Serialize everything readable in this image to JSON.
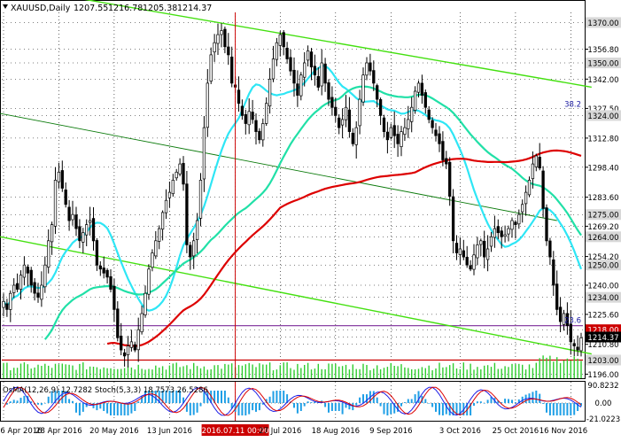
{
  "chart_data": [
    {
      "type": "candlestick",
      "symbol": "XAUUSD,Daily",
      "ohlc_header": [
        "1207.55",
        "1216.78",
        "1205.38",
        "1214.37"
      ],
      "ylim": [
        1194,
        1375
      ],
      "y_ticks": [
        "1370.00",
        "1356.80",
        "1350.00",
        "1342.00",
        "1327.50",
        "1324.00",
        "1312.80",
        "1298.40",
        "1283.60",
        "1275.00",
        "1269.20",
        "1264.00",
        "1254.20",
        "1250.00",
        "1240.00",
        "1234.00",
        "1225.60",
        "1218.00",
        "1214.37",
        "1210.80",
        "1203.00",
        "1196.00"
      ],
      "highlighted_levels": [
        {
          "label": "1370.00",
          "value": 1370.0
        },
        {
          "label": "1350.00",
          "value": 1350.0
        },
        {
          "label": "1324.00",
          "value": 1324.0
        },
        {
          "label": "1275.00",
          "value": 1275.0
        },
        {
          "label": "1264.00",
          "value": 1264.0
        },
        {
          "label": "1250.00",
          "value": 1250.0
        },
        {
          "label": "1234.00",
          "value": 1234.0
        },
        {
          "label": "1218.00",
          "value": 1218.0,
          "color": "#cc0000"
        },
        {
          "label": "1214.37",
          "value": 1214.37,
          "color": "#000000"
        },
        {
          "label": "1203.00",
          "value": 1203.0
        }
      ],
      "fib_labels": [
        {
          "label": "38.2",
          "value": 1327.5
        },
        {
          "label": "23.6",
          "value": 1220.5
        }
      ],
      "horizontal_lines": [
        {
          "value": 1220,
          "color": "#7b2b9a"
        },
        {
          "value": 1203,
          "color": "#cc0000"
        }
      ],
      "x_labels": [
        "6 Apr 2016",
        "28 Apr 2016",
        "20 May 2016",
        "13 Jun 2016",
        "2016.07.11 00:00",
        "27 Jul 2016",
        "18 Aug 2016",
        "9 Sep 2016",
        "3 Oct 2016",
        "25 Oct 2016",
        "16 Nov 2016"
      ],
      "x_label_index": [
        0,
        16,
        32,
        48,
        67,
        80,
        96,
        112,
        132,
        148,
        164
      ],
      "crosshair_index": 67,
      "closes": [
        1232,
        1228,
        1236,
        1240,
        1238,
        1245,
        1250,
        1246,
        1240,
        1236,
        1234,
        1240,
        1250,
        1262,
        1270,
        1292,
        1296,
        1288,
        1280,
        1272,
        1275,
        1268,
        1262,
        1266,
        1270,
        1272,
        1262,
        1250,
        1248,
        1246,
        1244,
        1238,
        1228,
        1214,
        1208,
        1205,
        1210,
        1212,
        1208,
        1218,
        1226,
        1236,
        1248,
        1256,
        1262,
        1268,
        1276,
        1282,
        1286,
        1292,
        1296,
        1300,
        1290,
        1260,
        1254,
        1262,
        1272,
        1292,
        1318,
        1340,
        1354,
        1360,
        1364,
        1366,
        1358,
        1354,
        1340,
        1338,
        1330,
        1324,
        1320,
        1326,
        1322,
        1316,
        1312,
        1320,
        1330,
        1342,
        1352,
        1360,
        1364,
        1358,
        1352,
        1346,
        1340,
        1334,
        1344,
        1350,
        1356,
        1348,
        1344,
        1338,
        1350,
        1340,
        1332,
        1328,
        1324,
        1318,
        1322,
        1328,
        1316,
        1310,
        1318,
        1332,
        1344,
        1350,
        1346,
        1340,
        1332,
        1324,
        1316,
        1312,
        1318,
        1314,
        1310,
        1316,
        1318,
        1322,
        1328,
        1336,
        1340,
        1334,
        1328,
        1322,
        1318,
        1314,
        1310,
        1302,
        1300,
        1284,
        1262,
        1256,
        1258,
        1254,
        1250,
        1248,
        1255,
        1260,
        1262,
        1254,
        1258,
        1264,
        1268,
        1266,
        1264,
        1265,
        1268,
        1272,
        1270,
        1275,
        1280,
        1286,
        1292,
        1300,
        1304,
        1298,
        1278,
        1262,
        1254,
        1240,
        1228,
        1222,
        1226,
        1220,
        1212,
        1210,
        1208,
        1214
      ],
      "sma_periods": [
        50,
        100,
        200
      ],
      "indicator_panel": {
        "label": "OsMA(12,26,9) 12.7282  Stoch(5,3,3) 18.7573 26.5286",
        "y_ticks": [
          "90.8232",
          "0.00",
          "-21.0223"
        ]
      },
      "colors": {
        "background": "#ffffff",
        "candle": "#000000",
        "sma_fast": "#2ee6f5",
        "sma_mid": "#21e0a7",
        "sma_slow": "#dd0000",
        "channel": "#44e010",
        "channel_mid": "#0a7a0a",
        "volume": "#2fcc2f",
        "stoch_main": "#1e1ee6",
        "stoch_signal": "#dd0000",
        "osma": "#1f9fe6",
        "crosshair": "#cc0000",
        "level_box": "#d8d8d8"
      }
    }
  ]
}
